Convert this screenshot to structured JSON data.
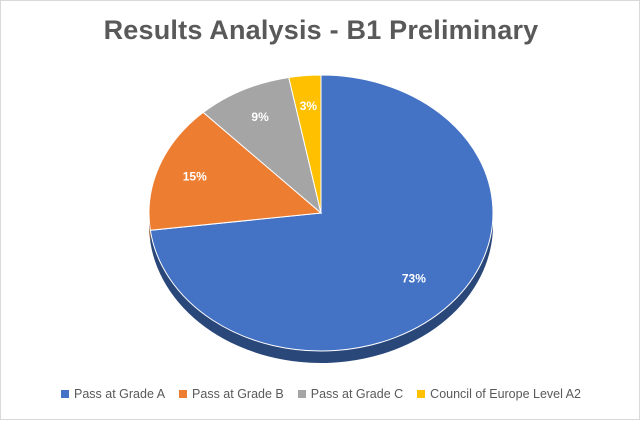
{
  "chart_data": {
    "type": "pie",
    "title": "Results Analysis - B1 Preliminary",
    "categories": [
      "Pass at Grade A",
      "Pass at Grade B",
      "Pass at Grade C",
      "Council of Europe Level A2"
    ],
    "values": [
      73,
      15,
      9,
      3
    ],
    "data_labels": [
      "73%",
      "15%",
      "9%",
      "3%"
    ],
    "colors": [
      "#4472C4",
      "#ED7D31",
      "#A5A5A5",
      "#FFC000"
    ],
    "legend_position": "bottom",
    "style": "3d"
  }
}
